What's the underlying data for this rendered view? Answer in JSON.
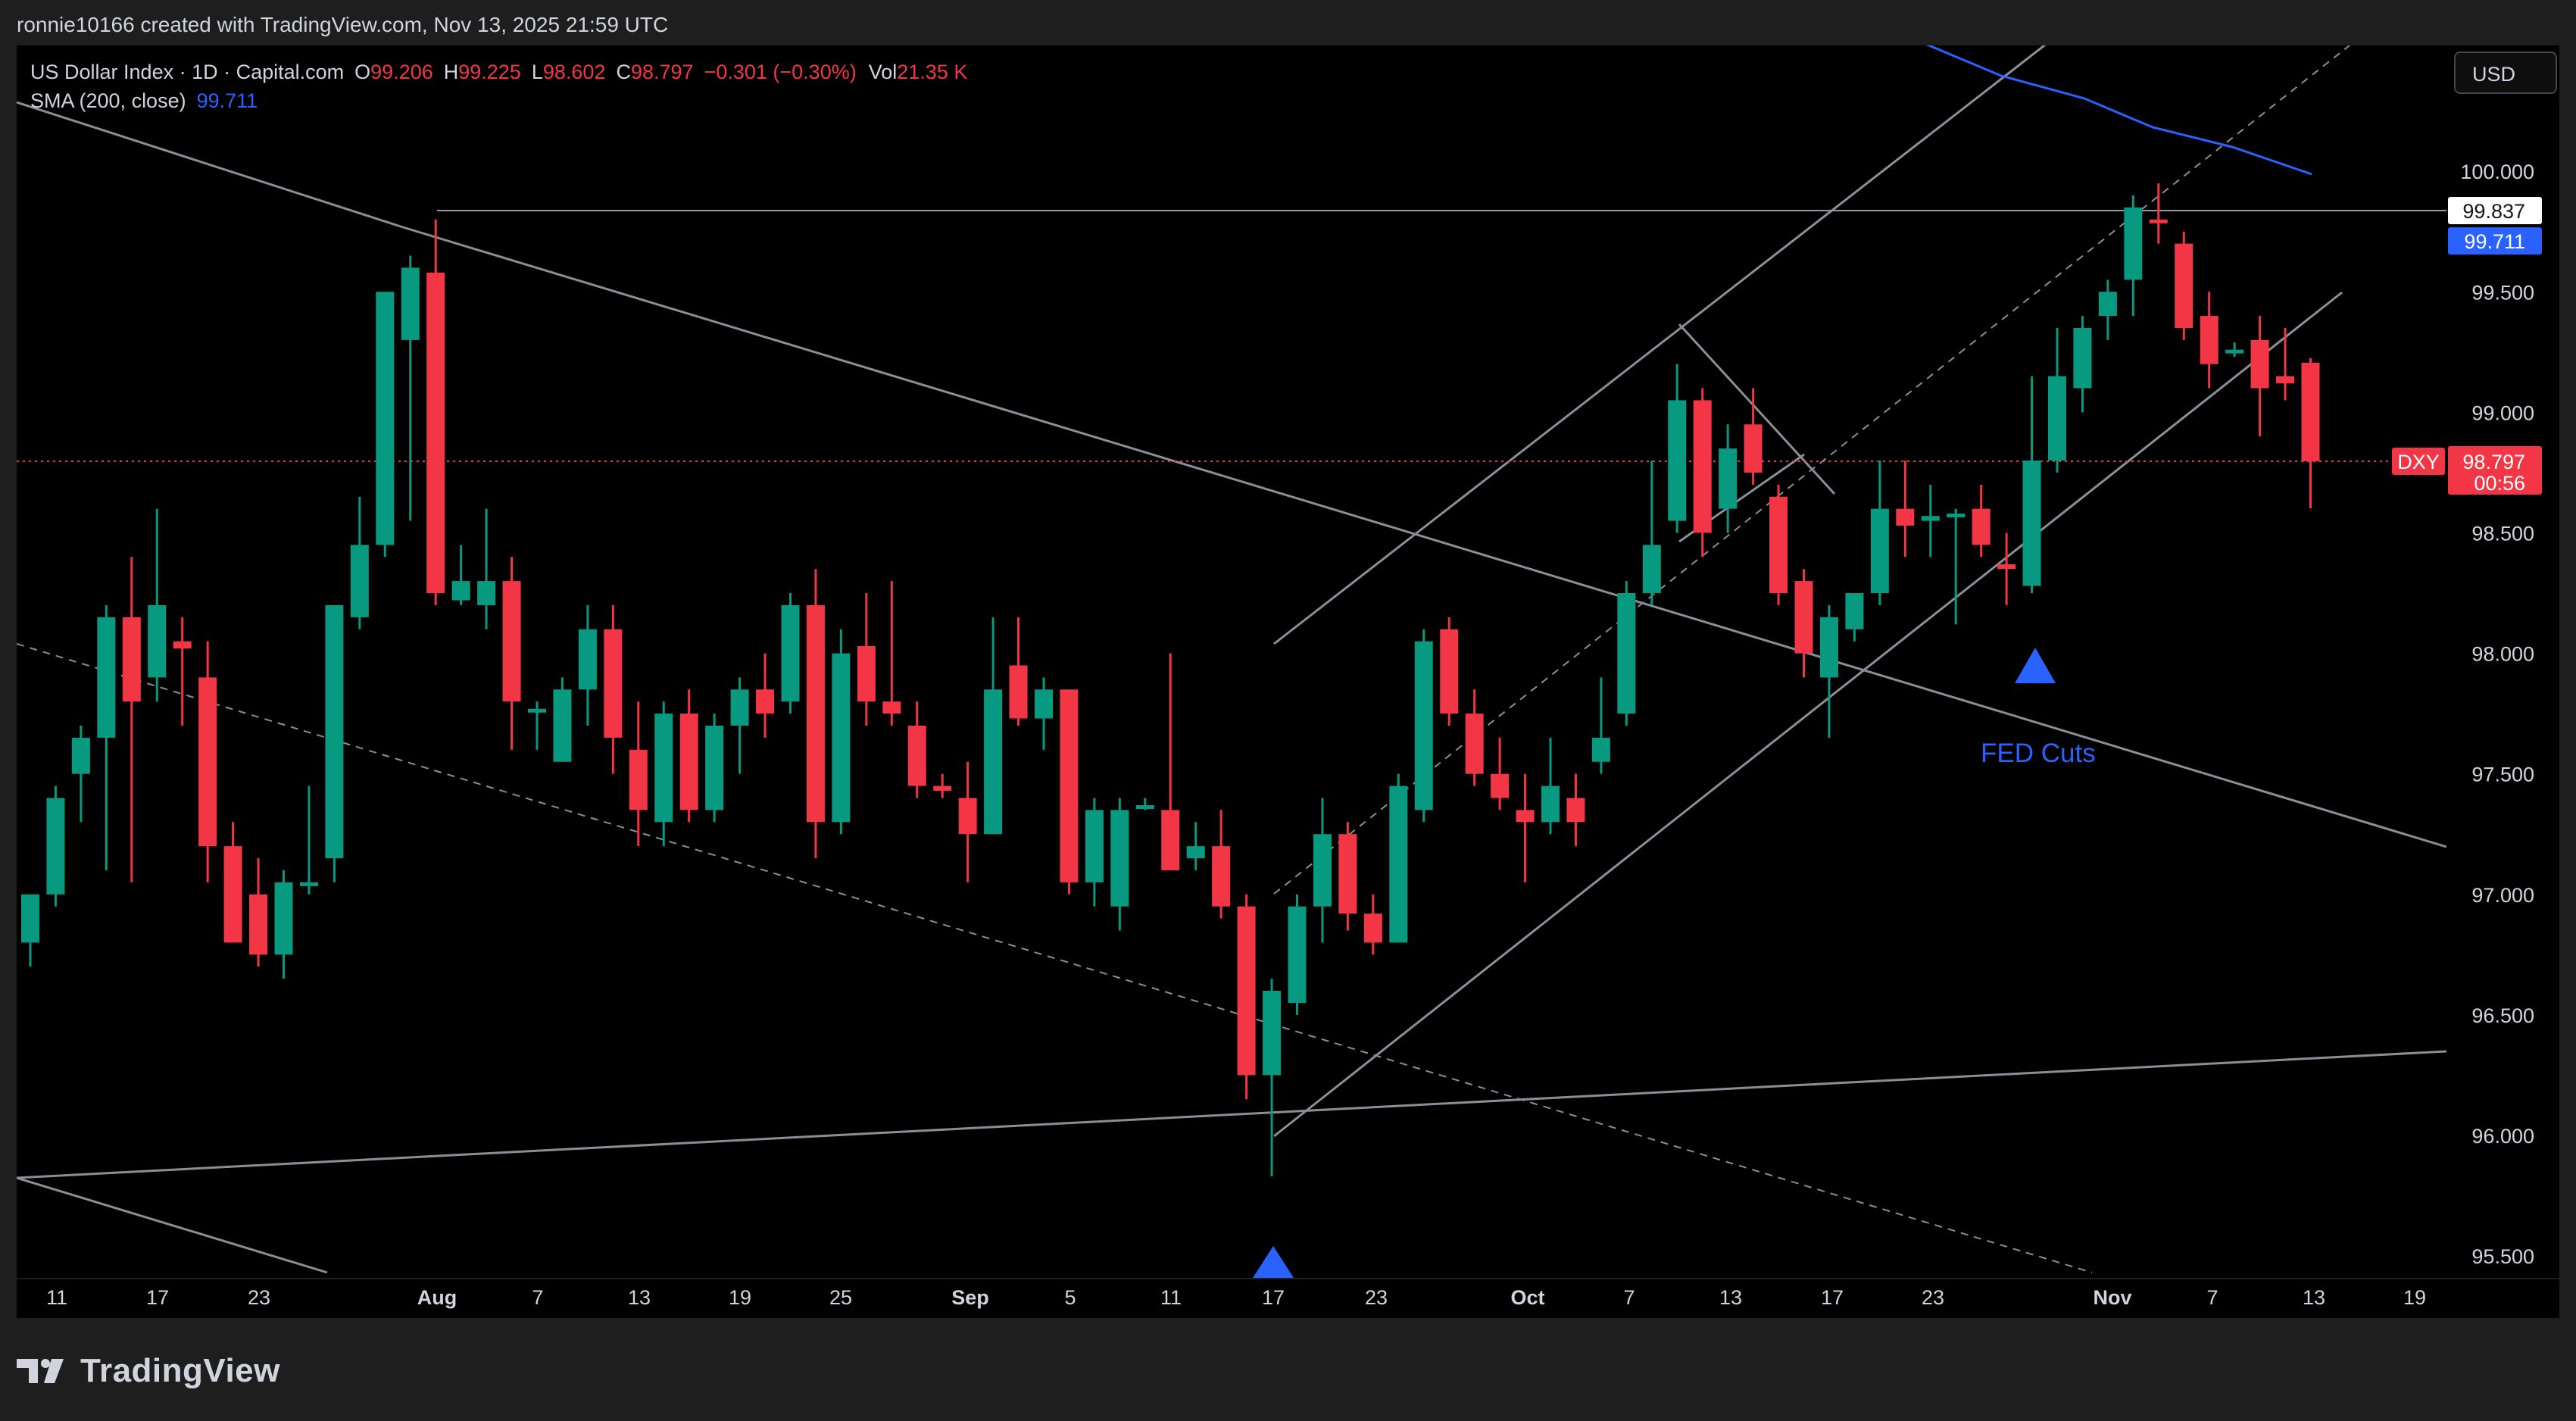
{
  "header": {
    "attribution": "ronnie10166 created with TradingView.com, Nov 13, 2025 21:59 UTC"
  },
  "legend": {
    "symbol": "US Dollar Index · 1D · Capital.com",
    "o_label": "O",
    "o_value": "99.206",
    "h_label": "H",
    "h_value": "99.225",
    "l_label": "L",
    "l_value": "98.602",
    "c_label": "C",
    "c_value": "98.797",
    "change": "−0.301 (−0.30%)",
    "vol_label": "Vol",
    "vol_value": "21.35 K",
    "sma_label": "SMA (200, close)",
    "sma_value": "99.711"
  },
  "currency_button": "USD",
  "brand": {
    "name": "TradingView"
  },
  "colors": {
    "up": "#089981",
    "down": "#f23645",
    "sma": "#2962ff",
    "trendline": "#9598a1",
    "marker": "#2962ff",
    "background": "#000000"
  },
  "chart_data": {
    "type": "candlestick",
    "symbol": "US Dollar Index",
    "interval": "1D",
    "ylim": [
      95.3,
      100.5
    ],
    "y_ticks": [
      "100.000",
      "99.500",
      "99.000",
      "98.500",
      "98.000",
      "97.500",
      "97.000",
      "96.500",
      "96.000",
      "95.500"
    ],
    "x_ticks": [
      "11",
      "17",
      "23",
      "Aug",
      "7",
      "13",
      "19",
      "25",
      "Sep",
      "5",
      "11",
      "17",
      "23",
      "Oct",
      "7",
      "13",
      "17",
      "23",
      "Nov",
      "7",
      "13",
      "19"
    ],
    "candles": [
      {
        "o": 96.8,
        "h": 97.0,
        "l": 96.7,
        "c": 97.0
      },
      {
        "o": 97.0,
        "h": 97.45,
        "l": 96.95,
        "c": 97.4
      },
      {
        "o": 97.5,
        "h": 97.7,
        "l": 97.3,
        "c": 97.65
      },
      {
        "o": 97.65,
        "h": 98.2,
        "l": 97.1,
        "c": 98.15
      },
      {
        "o": 98.15,
        "h": 98.4,
        "l": 97.05,
        "c": 97.8
      },
      {
        "o": 97.9,
        "h": 98.6,
        "l": 97.8,
        "c": 98.2
      },
      {
        "o": 98.05,
        "h": 98.15,
        "l": 97.7,
        "c": 98.02
      },
      {
        "o": 97.9,
        "h": 98.05,
        "l": 97.05,
        "c": 97.2
      },
      {
        "o": 97.2,
        "h": 97.3,
        "l": 96.8,
        "c": 96.8
      },
      {
        "o": 97.0,
        "h": 97.15,
        "l": 96.7,
        "c": 96.75
      },
      {
        "o": 96.75,
        "h": 97.1,
        "l": 96.65,
        "c": 97.05
      },
      {
        "o": 97.05,
        "h": 97.45,
        "l": 97.0,
        "c": 97.05
      },
      {
        "o": 97.15,
        "h": 98.2,
        "l": 97.05,
        "c": 98.2
      },
      {
        "o": 98.15,
        "h": 98.65,
        "l": 98.1,
        "c": 98.45
      },
      {
        "o": 98.45,
        "h": 99.5,
        "l": 98.4,
        "c": 99.5
      },
      {
        "o": 99.3,
        "h": 99.65,
        "l": 98.55,
        "c": 99.6
      },
      {
        "o": 99.58,
        "h": 99.8,
        "l": 98.2,
        "c": 98.25
      },
      {
        "o": 98.22,
        "h": 98.45,
        "l": 98.2,
        "c": 98.3
      },
      {
        "o": 98.2,
        "h": 98.6,
        "l": 98.1,
        "c": 98.3
      },
      {
        "o": 98.3,
        "h": 98.4,
        "l": 97.6,
        "c": 97.8
      },
      {
        "o": 97.77,
        "h": 97.8,
        "l": 97.6,
        "c": 97.77
      },
      {
        "o": 97.55,
        "h": 97.9,
        "l": 97.55,
        "c": 97.85
      },
      {
        "o": 97.85,
        "h": 98.2,
        "l": 97.7,
        "c": 98.1
      },
      {
        "o": 98.1,
        "h": 98.2,
        "l": 97.5,
        "c": 97.65
      },
      {
        "o": 97.6,
        "h": 97.8,
        "l": 97.2,
        "c": 97.35
      },
      {
        "o": 97.3,
        "h": 97.8,
        "l": 97.2,
        "c": 97.75
      },
      {
        "o": 97.75,
        "h": 97.85,
        "l": 97.3,
        "c": 97.35
      },
      {
        "o": 97.35,
        "h": 97.75,
        "l": 97.3,
        "c": 97.7
      },
      {
        "o": 97.7,
        "h": 97.9,
        "l": 97.5,
        "c": 97.85
      },
      {
        "o": 97.85,
        "h": 98.0,
        "l": 97.65,
        "c": 97.75
      },
      {
        "o": 97.8,
        "h": 98.25,
        "l": 97.75,
        "c": 98.2
      },
      {
        "o": 98.2,
        "h": 98.35,
        "l": 97.15,
        "c": 97.3
      },
      {
        "o": 97.3,
        "h": 98.1,
        "l": 97.25,
        "c": 98.0
      },
      {
        "o": 98.03,
        "h": 98.25,
        "l": 97.7,
        "c": 97.8
      },
      {
        "o": 97.8,
        "h": 98.3,
        "l": 97.7,
        "c": 97.75
      },
      {
        "o": 97.7,
        "h": 97.8,
        "l": 97.4,
        "c": 97.45
      },
      {
        "o": 97.45,
        "h": 97.5,
        "l": 97.4,
        "c": 97.43
      },
      {
        "o": 97.4,
        "h": 97.55,
        "l": 97.05,
        "c": 97.25
      },
      {
        "o": 97.25,
        "h": 98.15,
        "l": 97.25,
        "c": 97.85
      },
      {
        "o": 97.95,
        "h": 98.15,
        "l": 97.7,
        "c": 97.73
      },
      {
        "o": 97.73,
        "h": 97.9,
        "l": 97.6,
        "c": 97.85
      },
      {
        "o": 97.85,
        "h": 97.85,
        "l": 97.0,
        "c": 97.05
      },
      {
        "o": 97.05,
        "h": 97.4,
        "l": 96.95,
        "c": 97.35
      },
      {
        "o": 96.95,
        "h": 97.4,
        "l": 96.85,
        "c": 97.35
      },
      {
        "o": 97.37,
        "h": 97.4,
        "l": 97.35,
        "c": 97.37
      },
      {
        "o": 97.35,
        "h": 98.0,
        "l": 97.1,
        "c": 97.1
      },
      {
        "o": 97.15,
        "h": 97.3,
        "l": 97.1,
        "c": 97.2
      },
      {
        "o": 97.2,
        "h": 97.35,
        "l": 96.9,
        "c": 96.95
      },
      {
        "o": 96.95,
        "h": 97.0,
        "l": 96.15,
        "c": 96.25
      },
      {
        "o": 96.25,
        "h": 96.65,
        "l": 95.83,
        "c": 96.6
      },
      {
        "o": 96.55,
        "h": 97.0,
        "l": 96.5,
        "c": 96.95
      },
      {
        "o": 96.95,
        "h": 97.4,
        "l": 96.8,
        "c": 97.25
      },
      {
        "o": 97.25,
        "h": 97.3,
        "l": 96.85,
        "c": 96.92
      },
      {
        "o": 96.92,
        "h": 97.0,
        "l": 96.75,
        "c": 96.8
      },
      {
        "o": 96.8,
        "h": 97.5,
        "l": 96.8,
        "c": 97.45
      },
      {
        "o": 97.35,
        "h": 98.1,
        "l": 97.3,
        "c": 98.05
      },
      {
        "o": 98.1,
        "h": 98.15,
        "l": 97.7,
        "c": 97.75
      },
      {
        "o": 97.75,
        "h": 97.85,
        "l": 97.45,
        "c": 97.5
      },
      {
        "o": 97.5,
        "h": 97.65,
        "l": 97.35,
        "c": 97.4
      },
      {
        "o": 97.35,
        "h": 97.5,
        "l": 97.05,
        "c": 97.3
      },
      {
        "o": 97.3,
        "h": 97.65,
        "l": 97.25,
        "c": 97.45
      },
      {
        "o": 97.4,
        "h": 97.5,
        "l": 97.2,
        "c": 97.3
      },
      {
        "o": 97.55,
        "h": 97.9,
        "l": 97.5,
        "c": 97.65
      },
      {
        "o": 97.75,
        "h": 98.3,
        "l": 97.7,
        "c": 98.25
      },
      {
        "o": 98.25,
        "h": 98.8,
        "l": 98.2,
        "c": 98.45
      },
      {
        "o": 98.55,
        "h": 99.2,
        "l": 98.5,
        "c": 99.05
      },
      {
        "o": 99.05,
        "h": 99.1,
        "l": 98.4,
        "c": 98.5
      },
      {
        "o": 98.6,
        "h": 98.95,
        "l": 98.5,
        "c": 98.85
      },
      {
        "o": 98.95,
        "h": 99.1,
        "l": 98.7,
        "c": 98.75
      },
      {
        "o": 98.65,
        "h": 98.7,
        "l": 98.2,
        "c": 98.25
      },
      {
        "o": 98.3,
        "h": 98.35,
        "l": 97.9,
        "c": 98.0
      },
      {
        "o": 97.9,
        "h": 98.2,
        "l": 97.65,
        "c": 98.15
      },
      {
        "o": 98.1,
        "h": 98.25,
        "l": 98.05,
        "c": 98.25
      },
      {
        "o": 98.25,
        "h": 98.8,
        "l": 98.2,
        "c": 98.6
      },
      {
        "o": 98.6,
        "h": 98.8,
        "l": 98.4,
        "c": 98.53
      },
      {
        "o": 98.55,
        "h": 98.7,
        "l": 98.4,
        "c": 98.57
      },
      {
        "o": 98.58,
        "h": 98.6,
        "l": 98.12,
        "c": 98.58
      },
      {
        "o": 98.6,
        "h": 98.7,
        "l": 98.4,
        "c": 98.45
      },
      {
        "o": 98.37,
        "h": 98.5,
        "l": 98.2,
        "c": 98.35
      },
      {
        "o": 98.28,
        "h": 99.15,
        "l": 98.25,
        "c": 98.8
      },
      {
        "o": 98.8,
        "h": 99.35,
        "l": 98.75,
        "c": 99.15
      },
      {
        "o": 99.1,
        "h": 99.4,
        "l": 99.0,
        "c": 99.35
      },
      {
        "o": 99.4,
        "h": 99.55,
        "l": 99.3,
        "c": 99.5
      },
      {
        "o": 99.55,
        "h": 99.9,
        "l": 99.4,
        "c": 99.85
      },
      {
        "o": 99.8,
        "h": 99.95,
        "l": 99.7,
        "c": 99.79
      },
      {
        "o": 99.7,
        "h": 99.75,
        "l": 99.3,
        "c": 99.35
      },
      {
        "o": 99.4,
        "h": 99.5,
        "l": 99.1,
        "c": 99.2
      },
      {
        "o": 99.26,
        "h": 99.29,
        "l": 99.23,
        "c": 99.26
      },
      {
        "o": 99.3,
        "h": 99.4,
        "l": 98.9,
        "c": 99.1
      },
      {
        "o": 99.15,
        "h": 99.35,
        "l": 99.05,
        "c": 99.12
      },
      {
        "o": 99.206,
        "h": 99.225,
        "l": 98.602,
        "c": 98.797
      }
    ],
    "sma_200": {
      "name": "SMA (200, close)",
      "last_value": 99.711
    },
    "price_labels": [
      {
        "text": "99.837",
        "value": 99.837,
        "kind": "horizontal-line"
      },
      {
        "text": "99.711",
        "value": 99.711,
        "kind": "sma"
      },
      {
        "text": "DXY",
        "kind": "symbol-tag"
      },
      {
        "text": "98.797",
        "value": 98.797,
        "kind": "last-price"
      },
      {
        "text": "00:56",
        "kind": "countdown"
      }
    ],
    "annotations": [
      {
        "text": "FED Cuts",
        "kind": "label"
      },
      {
        "kind": "arrow-up",
        "text": ""
      },
      {
        "kind": "arrow-up",
        "text": ""
      }
    ],
    "horizontal_line": 99.837,
    "last_price_line": 98.797,
    "grid": false,
    "legend_position": "top-left"
  }
}
